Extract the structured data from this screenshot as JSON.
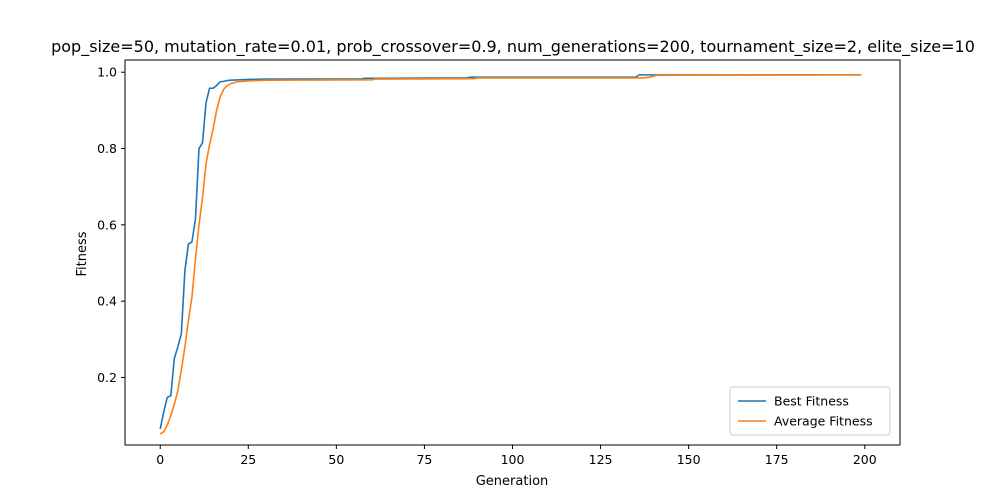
{
  "chart_data": {
    "type": "line",
    "title": "pop_size=50, mutation_rate=0.01, prob_crossover=0.9, num_generations=200, tournament_size=2, elite_size=10",
    "xlabel": "Generation",
    "ylabel": "Fitness",
    "xlim": [
      -10,
      210
    ],
    "ylim": [
      0.023,
      1.032
    ],
    "xticks": [
      0,
      25,
      50,
      75,
      100,
      125,
      150,
      175,
      200
    ],
    "yticks": [
      0.2,
      0.4,
      0.6,
      0.8,
      1.0
    ],
    "ytick_labels": [
      "0.2",
      "0.4",
      "0.6",
      "0.8",
      "1.0"
    ],
    "grid": false,
    "legend_position": "bottom-right",
    "series": [
      {
        "name": "Best Fitness",
        "color": "#1f77b4",
        "points": [
          [
            0,
            0.065
          ],
          [
            1,
            0.11
          ],
          [
            2,
            0.148
          ],
          [
            3,
            0.152
          ],
          [
            4,
            0.25
          ],
          [
            5,
            0.28
          ],
          [
            6,
            0.315
          ],
          [
            7,
            0.48
          ],
          [
            8,
            0.55
          ],
          [
            9,
            0.555
          ],
          [
            10,
            0.615
          ],
          [
            11,
            0.8
          ],
          [
            12,
            0.815
          ],
          [
            13,
            0.92
          ],
          [
            14,
            0.958
          ],
          [
            15,
            0.958
          ],
          [
            16,
            0.965
          ],
          [
            17,
            0.975
          ],
          [
            18,
            0.976
          ],
          [
            19,
            0.978
          ],
          [
            20,
            0.979
          ],
          [
            25,
            0.981
          ],
          [
            30,
            0.982
          ],
          [
            57,
            0.982
          ],
          [
            58,
            0.984
          ],
          [
            87,
            0.985
          ],
          [
            88,
            0.987
          ],
          [
            135,
            0.987
          ],
          [
            136,
            0.993
          ],
          [
            199,
            0.993
          ]
        ]
      },
      {
        "name": "Average Fitness",
        "color": "#ff7f0e",
        "points": [
          [
            0,
            0.052
          ],
          [
            1,
            0.058
          ],
          [
            2,
            0.075
          ],
          [
            3,
            0.1
          ],
          [
            4,
            0.13
          ],
          [
            5,
            0.165
          ],
          [
            6,
            0.22
          ],
          [
            7,
            0.28
          ],
          [
            8,
            0.35
          ],
          [
            9,
            0.41
          ],
          [
            10,
            0.51
          ],
          [
            11,
            0.6
          ],
          [
            12,
            0.67
          ],
          [
            13,
            0.76
          ],
          [
            14,
            0.81
          ],
          [
            15,
            0.85
          ],
          [
            16,
            0.9
          ],
          [
            17,
            0.935
          ],
          [
            18,
            0.955
          ],
          [
            19,
            0.965
          ],
          [
            20,
            0.97
          ],
          [
            22,
            0.975
          ],
          [
            25,
            0.977
          ],
          [
            30,
            0.979
          ],
          [
            60,
            0.98
          ],
          [
            61,
            0.982
          ],
          [
            89,
            0.983
          ],
          [
            90,
            0.985
          ],
          [
            137,
            0.985
          ],
          [
            139,
            0.987
          ],
          [
            141,
            0.992
          ],
          [
            199,
            0.993
          ]
        ]
      }
    ]
  }
}
